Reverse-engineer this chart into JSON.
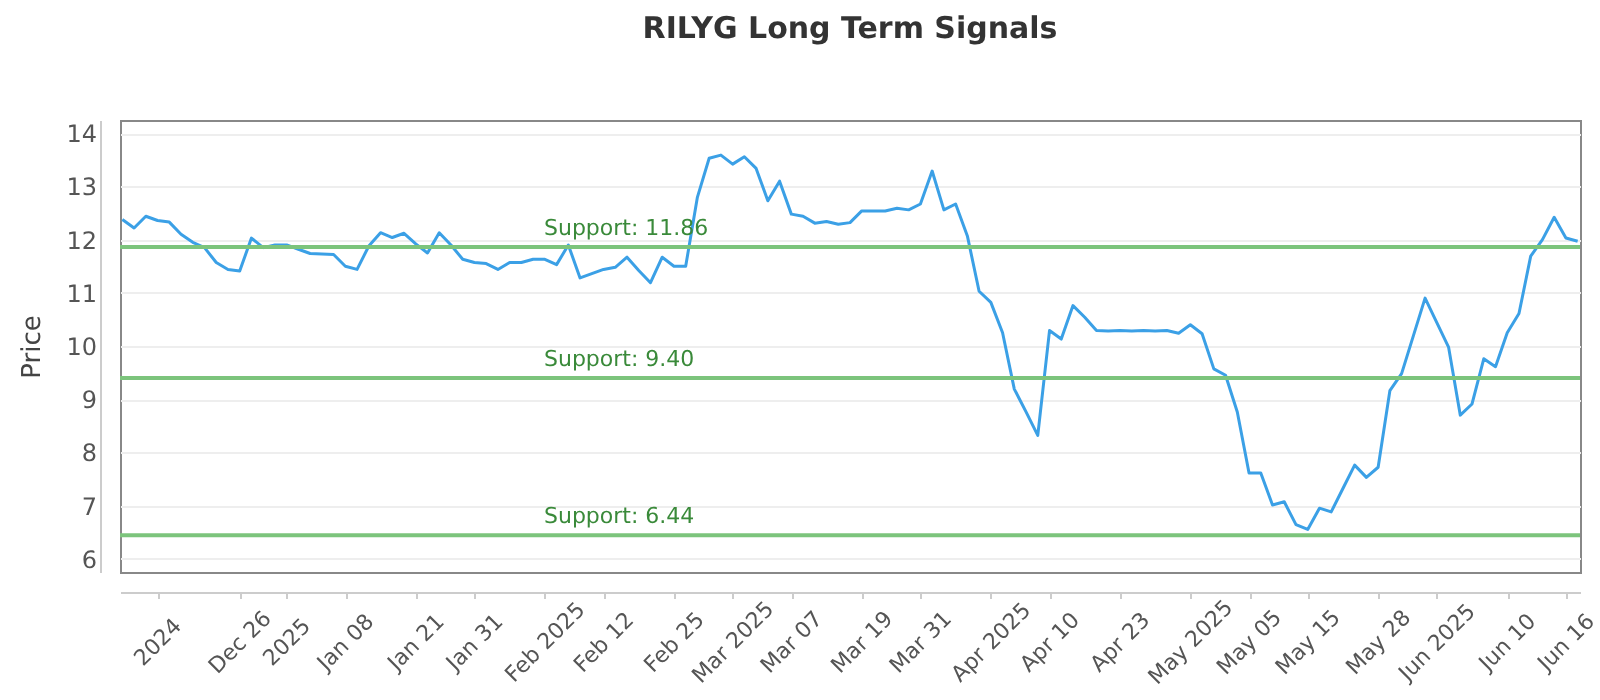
{
  "chart_data": {
    "type": "line",
    "title": "RILYG Long Term Signals",
    "ylabel": "Price",
    "categories": [
      null,
      null,
      null,
      "2024",
      null,
      null,
      null,
      null,
      null,
      null,
      "Dec 26",
      null,
      null,
      null,
      "2025",
      null,
      null,
      null,
      null,
      "Jan 08",
      null,
      null,
      null,
      null,
      null,
      "Jan 21",
      null,
      null,
      null,
      null,
      "Jan 31",
      null,
      null,
      null,
      null,
      null,
      "Feb 2025",
      null,
      null,
      null,
      null,
      "Feb 12",
      null,
      null,
      null,
      null,
      null,
      "Feb 25",
      null,
      null,
      null,
      null,
      "Mar 2025",
      null,
      null,
      null,
      null,
      "Mar 07",
      null,
      null,
      null,
      null,
      null,
      "Mar 19",
      null,
      null,
      null,
      null,
      "Mar 31",
      null,
      null,
      null,
      null,
      null,
      "Apr 2025",
      null,
      null,
      null,
      null,
      "Apr 10",
      null,
      null,
      null,
      null,
      null,
      "Apr 23",
      null,
      null,
      null,
      null,
      null,
      "May 2025",
      null,
      null,
      null,
      null,
      "May 05",
      null,
      null,
      null,
      null,
      "May 15",
      null,
      null,
      null,
      null,
      null,
      "May 28",
      null,
      null,
      null,
      null,
      "Jun 2025",
      null,
      null,
      null,
      null,
      null,
      "Jun 10",
      null,
      null,
      null,
      null,
      "Jun 16",
      null
    ],
    "series": [
      {
        "color": "#3ba0e6",
        "values": [
          12.38,
          12.22,
          12.44,
          12.36,
          12.33,
          12.1,
          11.95,
          11.85,
          11.57,
          11.44,
          11.41,
          12.03,
          11.85,
          11.9,
          11.9,
          11.82,
          11.74,
          11.73,
          11.72,
          11.5,
          11.44,
          11.88,
          12.13,
          12.04,
          12.12,
          11.92,
          11.75,
          12.13,
          11.9,
          11.63,
          11.57,
          11.55,
          11.44,
          11.57,
          11.57,
          11.63,
          11.63,
          11.53,
          11.9,
          11.28,
          11.36,
          11.44,
          11.48,
          11.67,
          11.42,
          11.19,
          11.67,
          11.5,
          11.5,
          12.8,
          13.53,
          13.59,
          13.42,
          13.56,
          13.34,
          12.73,
          13.1,
          12.48,
          12.44,
          12.31,
          12.34,
          12.29,
          12.32,
          12.54,
          12.54,
          12.54,
          12.59,
          12.56,
          12.67,
          13.29,
          12.56,
          12.67,
          12.07,
          11.03,
          10.82,
          10.25,
          9.19,
          8.76,
          8.32,
          10.29,
          10.13,
          10.76,
          10.54,
          10.29,
          10.28,
          10.29,
          10.28,
          10.29,
          10.28,
          10.29,
          10.24,
          10.4,
          10.23,
          9.57,
          9.45,
          8.76,
          7.61,
          7.61,
          7.01,
          7.07,
          6.64,
          6.55,
          6.95,
          6.88,
          7.32,
          7.76,
          7.53,
          7.72,
          9.16,
          9.48,
          10.19,
          10.9,
          10.44,
          9.98,
          8.7,
          8.91,
          9.76,
          9.61,
          10.25,
          10.61,
          11.69,
          12.0,
          12.42,
          12.03,
          11.97
        ]
      }
    ],
    "ylim": [
      5.75,
      14.25
    ],
    "yticks": [
      6,
      7,
      8,
      9,
      10,
      11,
      12,
      13,
      14
    ],
    "grid": "y",
    "ref_lines": [
      {
        "axis": "y",
        "value": 11.86,
        "label": "Support: 11.86",
        "color": "#7cc47c"
      },
      {
        "axis": "y",
        "value": 9.4,
        "label": "Support: 9.40",
        "color": "#7cc47c"
      },
      {
        "axis": "y",
        "value": 6.44,
        "label": "Support: 6.44",
        "color": "#7cc47c"
      }
    ]
  }
}
